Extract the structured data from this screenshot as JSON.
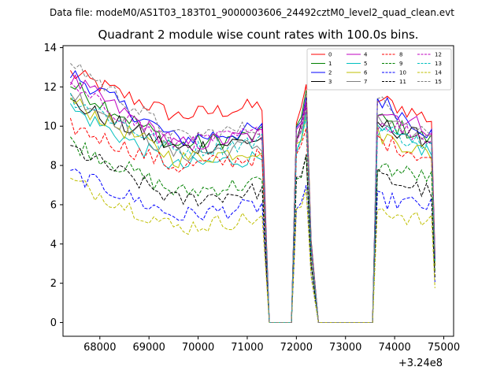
{
  "chart_data": {
    "type": "line",
    "suptitle": "Data file: modeM0/AS1T03_183T01_9000003606_24492cztM0_level2_quad_clean.evt",
    "title": "Quadrant 2 module wise count rates with 100.0s bins.",
    "xlabel": "",
    "ylabel": "",
    "x_offset_label": "+3.24e8",
    "xlim": [
      67250,
      75200
    ],
    "ylim": [
      -0.7,
      14.1
    ],
    "x_ticks": [
      68000,
      69000,
      70000,
      71000,
      72000,
      73000,
      74000,
      75000
    ],
    "y_ticks": [
      0,
      2,
      4,
      6,
      8,
      10,
      12,
      14
    ],
    "segments": [
      {
        "start": 67400,
        "end": 71300
      },
      {
        "start": 71900,
        "end": 72300
      },
      {
        "start": 73550,
        "end": 74800
      }
    ],
    "gaps": [
      {
        "start": 71450,
        "end": 71950
      },
      {
        "start": 72450,
        "end": 73550
      }
    ],
    "bin_seconds": 100,
    "grid": false,
    "legend_position": "top-right",
    "legend_columns": 4,
    "series": [
      {
        "name": "0",
        "color": "#ff0000",
        "dash": "solid",
        "start": 12.7,
        "mid": 10.5,
        "seg2": 12.0,
        "seg3": 11.5,
        "seg3_end": 10.3
      },
      {
        "name": "1",
        "color": "#008000",
        "dash": "solid",
        "start": 12.1,
        "mid": 9.0,
        "seg2": 11.8,
        "seg3": 10.5,
        "seg3_end": 9.2
      },
      {
        "name": "2",
        "color": "#0000ff",
        "dash": "solid",
        "start": 12.7,
        "mid": 9.3,
        "seg2": 11.5,
        "seg3": 11.6,
        "seg3_end": 9.5
      },
      {
        "name": "3",
        "color": "#000000",
        "dash": "solid",
        "start": 11.2,
        "mid": 8.8,
        "seg2": 11.0,
        "seg3": 10.2,
        "seg3_end": 9.2
      },
      {
        "name": "4",
        "color": "#bf00bf",
        "dash": "solid",
        "start": 12.4,
        "mid": 9.0,
        "seg2": 11.4,
        "seg3": 11.0,
        "seg3_end": 9.8
      },
      {
        "name": "5",
        "color": "#00bfbf",
        "dash": "solid",
        "start": 10.9,
        "mid": 7.9,
        "seg2": 10.6,
        "seg3": 9.9,
        "seg3_end": 8.6
      },
      {
        "name": "6",
        "color": "#bfbf00",
        "dash": "solid",
        "start": 11.3,
        "mid": 8.3,
        "seg2": 10.5,
        "seg3": 9.7,
        "seg3_end": 8.5
      },
      {
        "name": "7",
        "color": "#808080",
        "dash": "solid",
        "start": 11.7,
        "mid": 8.5,
        "seg2": 10.9,
        "seg3": 10.4,
        "seg3_end": 9.0
      },
      {
        "name": "8",
        "color": "#ff0000",
        "dash": "dashed",
        "start": 10.0,
        "mid": 7.9,
        "seg2": 9.9,
        "seg3": 9.4,
        "seg3_end": 8.3
      },
      {
        "name": "9",
        "color": "#008000",
        "dash": "dashed",
        "start": 9.2,
        "mid": 6.6,
        "seg2": 8.4,
        "seg3": 8.0,
        "seg3_end": 7.3
      },
      {
        "name": "10",
        "color": "#0000ff",
        "dash": "dashed",
        "start": 7.6,
        "mid": 5.4,
        "seg2": 6.8,
        "seg3": 6.3,
        "seg3_end": 5.9
      },
      {
        "name": "11",
        "color": "#000000",
        "dash": "dashed",
        "start": 8.9,
        "mid": 6.2,
        "seg2": 8.5,
        "seg3": 7.5,
        "seg3_end": 6.6
      },
      {
        "name": "12",
        "color": "#bf00bf",
        "dash": "dashed",
        "start": 11.9,
        "mid": 9.1,
        "seg2": 11.0,
        "seg3": 10.3,
        "seg3_end": 9.3
      },
      {
        "name": "13",
        "color": "#00bfbf",
        "dash": "dashed",
        "start": 11.5,
        "mid": 8.7,
        "seg2": 10.4,
        "seg3": 10.0,
        "seg3_end": 8.9
      },
      {
        "name": "14",
        "color": "#bfbf00",
        "dash": "dashed",
        "start": 7.2,
        "mid": 4.8,
        "seg2": 6.6,
        "seg3": 5.9,
        "seg3_end": 5.0
      },
      {
        "name": "15",
        "color": "#808080",
        "dash": "dashed",
        "start": 13.3,
        "mid": 9.4,
        "seg2": 11.6,
        "seg3": 11.4,
        "seg3_end": 9.6
      }
    ]
  }
}
